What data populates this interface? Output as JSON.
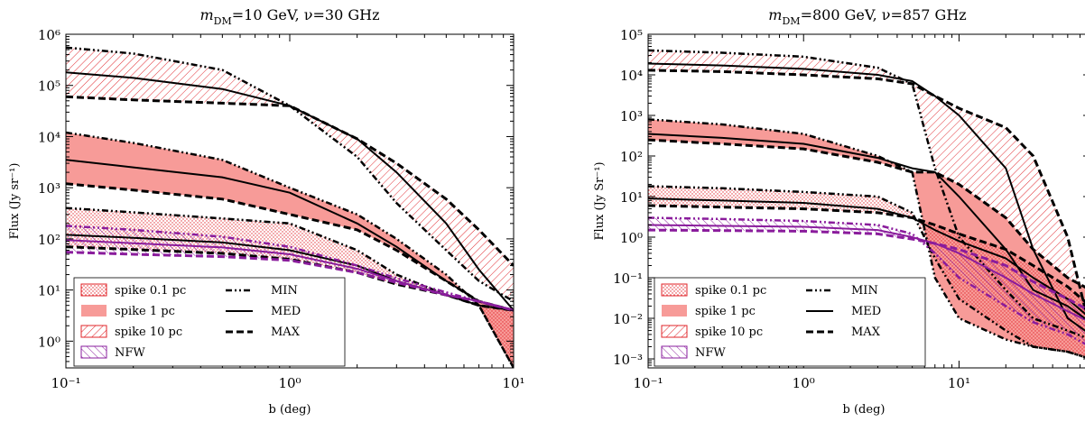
{
  "charts": [
    {
      "id": "left",
      "title_base": "m",
      "title_sub": "DM",
      "title_rest": "=10 GeV, ν=30 GHz",
      "ylabel": "Flux (Jy sr⁻¹)",
      "xlabel": "b (deg)"
    },
    {
      "id": "right",
      "title_base": "m",
      "title_sub": "DM",
      "title_rest": "=800 GeV, ν=857 GHz",
      "ylabel": "Flux (Jy Sr⁻¹)",
      "xlabel": "b (deg)"
    }
  ],
  "legend": {
    "fills": [
      "spike 0.1 pc",
      "spike 1 pc",
      "spike 10 pc",
      "NFW"
    ],
    "lines": [
      "MIN",
      "MED",
      "MAX"
    ]
  },
  "colors": {
    "red": "#e0242a",
    "salmon": "#f79b98",
    "purple": "#8a1c9c",
    "black": "#000000"
  },
  "chart_data": [
    {
      "type": "line",
      "title": "m_DM = 10 GeV, ν = 30 GHz",
      "xlabel": "b (deg)",
      "ylabel": "Flux (Jy sr⁻¹)",
      "xscale": "log",
      "yscale": "log",
      "xlim": [
        0.1,
        10
      ],
      "ylim": [
        0.3,
        1000000
      ],
      "x_ticks": [
        "10⁻¹",
        "10⁰",
        "10¹"
      ],
      "y_ticks": [
        "10⁰",
        "10¹",
        "10²",
        "10³",
        "10⁴",
        "10⁵",
        "10⁶"
      ],
      "x": [
        0.1,
        0.2,
        0.5,
        1,
        2,
        3,
        5,
        7,
        10
      ],
      "series": [
        {
          "name": "spike 10 pc",
          "variant": "MIN",
          "values": [
            550000,
            420000,
            200000,
            40000,
            4000,
            500,
            60,
            15,
            6
          ]
        },
        {
          "name": "spike 10 pc",
          "variant": "MED",
          "values": [
            180000,
            140000,
            85000,
            40000,
            9000,
            2000,
            200,
            25,
            4
          ]
        },
        {
          "name": "spike 10 pc",
          "variant": "MAX",
          "values": [
            60000,
            52000,
            45000,
            40000,
            9000,
            3000,
            600,
            150,
            30
          ]
        },
        {
          "name": "spike 1 pc",
          "variant": "MIN",
          "values": [
            12000,
            7500,
            3500,
            1000,
            300,
            100,
            20,
            5,
            0.3
          ]
        },
        {
          "name": "spike 1 pc",
          "variant": "MED",
          "values": [
            3500,
            2500,
            1600,
            800,
            200,
            70,
            15,
            6,
            4
          ]
        },
        {
          "name": "spike 1 pc",
          "variant": "MAX",
          "values": [
            1200,
            900,
            600,
            300,
            150,
            60,
            15,
            6,
            4
          ]
        },
        {
          "name": "spike 0.1 pc",
          "variant": "MIN",
          "values": [
            400,
            330,
            250,
            200,
            60,
            20,
            8,
            5,
            0.3
          ]
        },
        {
          "name": "spike 0.1 pc",
          "variant": "MED",
          "values": [
            120,
            105,
            85,
            60,
            30,
            15,
            8,
            5,
            4
          ]
        },
        {
          "name": "spike 0.1 pc",
          "variant": "MAX",
          "values": [
            70,
            62,
            52,
            40,
            22,
            13,
            8,
            5,
            4
          ]
        },
        {
          "name": "NFW",
          "variant": "MIN",
          "values": [
            180,
            150,
            110,
            70,
            30,
            17,
            9,
            6,
            4
          ]
        },
        {
          "name": "NFW",
          "variant": "MED",
          "values": [
            95,
            82,
            68,
            50,
            26,
            15,
            8,
            6,
            4
          ]
        },
        {
          "name": "NFW",
          "variant": "MAX",
          "values": [
            55,
            50,
            45,
            38,
            22,
            14,
            8,
            6,
            4
          ]
        }
      ],
      "legend_position": "lower-left"
    },
    {
      "type": "line",
      "title": "m_DM = 800 GeV, ν = 857 GHz",
      "xlabel": "b (deg)",
      "ylabel": "Flux (Jy Sr⁻¹)",
      "xscale": "log",
      "yscale": "log",
      "xlim": [
        0.1,
        70
      ],
      "ylim": [
        0.0006,
        100000
      ],
      "x_ticks": [
        "10⁻¹",
        "10⁰",
        "10¹"
      ],
      "y_ticks": [
        "10⁻³",
        "10⁻²",
        "10⁻¹",
        "10⁰",
        "10¹",
        "10²",
        "10³",
        "10⁴",
        "10⁵"
      ],
      "x": [
        0.1,
        0.3,
        1,
        3,
        5,
        7,
        10,
        20,
        30,
        50,
        70
      ],
      "series": [
        {
          "name": "spike 10 pc",
          "variant": "MIN",
          "values": [
            40000,
            35000,
            28000,
            15000,
            6000,
            50,
            1,
            0.05,
            0.01,
            0.005,
            0.003
          ]
        },
        {
          "name": "spike 10 pc",
          "variant": "MED",
          "values": [
            19000,
            17000,
            14000,
            10000,
            7000,
            3000,
            1000,
            50,
            0.5,
            0.01,
            0.004
          ]
        },
        {
          "name": "spike 10 pc",
          "variant": "MAX",
          "values": [
            13000,
            12000,
            10000,
            8000,
            6000,
            3000,
            1500,
            500,
            100,
            1,
            0.005
          ]
        },
        {
          "name": "spike 1 pc",
          "variant": "MIN",
          "values": [
            800,
            600,
            350,
            100,
            40,
            0.1,
            0.01,
            0.003,
            0.002,
            0.0015,
            0.001
          ]
        },
        {
          "name": "spike 1 pc",
          "variant": "MED",
          "values": [
            350,
            280,
            200,
            90,
            50,
            40,
            10,
            0.5,
            0.05,
            0.02,
            0.008
          ]
        },
        {
          "name": "spike 1 pc",
          "variant": "MAX",
          "values": [
            250,
            200,
            150,
            70,
            40,
            40,
            20,
            3,
            0.5,
            0.1,
            0.05
          ]
        },
        {
          "name": "spike 0.1 pc",
          "variant": "MIN",
          "values": [
            18,
            16,
            13,
            10,
            4,
            0.3,
            0.03,
            0.005,
            0.002,
            0.0015,
            0.001
          ]
        },
        {
          "name": "spike 0.1 pc",
          "variant": "MED",
          "values": [
            9,
            8,
            7,
            5,
            3,
            1.5,
            0.8,
            0.3,
            0.1,
            0.03,
            0.01
          ]
        },
        {
          "name": "spike 0.1 pc",
          "variant": "MAX",
          "values": [
            6,
            5.5,
            5,
            4,
            3,
            2,
            1.2,
            0.5,
            0.2,
            0.06,
            0.02
          ]
        },
        {
          "name": "NFW",
          "variant": "MIN",
          "values": [
            3,
            2.8,
            2.5,
            2,
            1.2,
            0.4,
            0.1,
            0.02,
            0.008,
            0.004,
            0.002
          ]
        },
        {
          "name": "NFW",
          "variant": "MED",
          "values": [
            2,
            1.9,
            1.8,
            1.5,
            1,
            0.7,
            0.4,
            0.1,
            0.04,
            0.015,
            0.008
          ]
        },
        {
          "name": "NFW",
          "variant": "MAX",
          "values": [
            1.5,
            1.45,
            1.4,
            1.2,
            0.9,
            0.7,
            0.5,
            0.2,
            0.08,
            0.03,
            0.015
          ]
        }
      ],
      "legend_position": "lower-left"
    }
  ]
}
